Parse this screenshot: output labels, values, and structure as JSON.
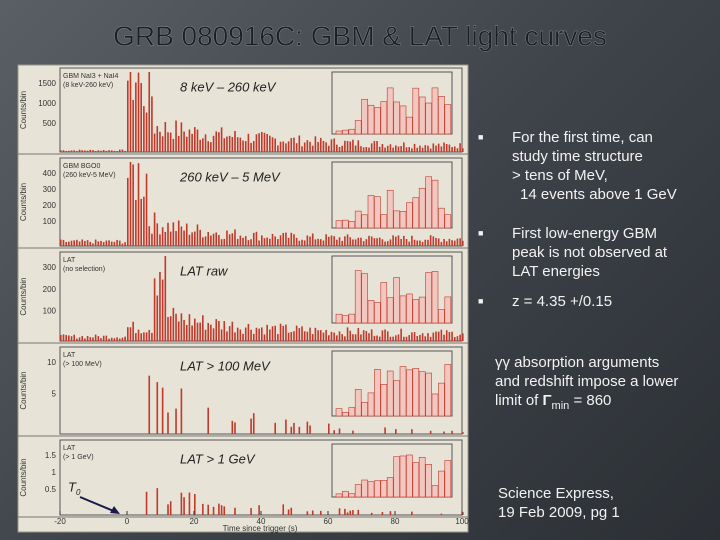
{
  "title": "GRB 080916C:  GBM & LAT light curves",
  "figure": {
    "y_label": "Counts/bin",
    "x_label": "Time since trigger (s)",
    "x_ticks": [
      "-20",
      "0",
      "20",
      "40",
      "60",
      "80",
      "100"
    ],
    "t0": "T",
    "t0_sub": "0",
    "panels": [
      {
        "label": "8 keV – 260 keV",
        "legend": [
          "GBM NaI3 + NaI4",
          "(8 keV-260 keV)"
        ],
        "y_ticks": [
          "1500",
          "1000",
          "500"
        ]
      },
      {
        "label": "260 keV – 5 MeV",
        "legend": [
          "GBM BGO0",
          "(260 keV-5 MeV)"
        ],
        "y_ticks": [
          "400",
          "300",
          "200",
          "100"
        ]
      },
      {
        "label": "LAT raw",
        "legend": [
          "LAT",
          "(no selection)"
        ],
        "y_ticks": [
          "300",
          "200",
          "100"
        ]
      },
      {
        "label": "LAT > 100 MeV",
        "legend": [
          "LAT",
          "(> 100 MeV)"
        ],
        "y_ticks": [
          "10",
          "5"
        ]
      },
      {
        "label": "LAT > 1 GeV",
        "legend": [
          "LAT",
          "(> 1 GeV)"
        ],
        "y_ticks": [
          "1.5",
          "1",
          "0.5"
        ]
      }
    ]
  },
  "bullets": [
    [
      "For the first time, can",
      "study time structure",
      "> tens of MeV,",
      "14 events above 1 GeV"
    ],
    [
      "First low-energy GBM",
      "peak is not observed at",
      "LAT energies"
    ],
    [
      "z = 4.35 +/0.15"
    ]
  ],
  "limit": {
    "lines": [
      "γγ absorption arguments",
      "and redshift impose a lower"
    ],
    "prefix": "limit of  ",
    "symbol": "Γ",
    "sub": "min",
    "suffix": " = 860"
  },
  "citation": [
    "Science Express,",
    "19 Feb 2009, pg 1"
  ]
}
